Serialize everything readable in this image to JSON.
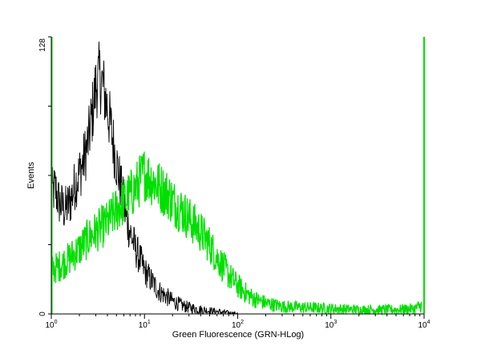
{
  "chart_data": {
    "type": "line",
    "title": "",
    "xlabel": "Green Fluorescence (GRN-HLog)",
    "ylabel": "Events",
    "x_scale": "log",
    "xlim": [
      1,
      10000
    ],
    "ylim": [
      0,
      128
    ],
    "x_ticks": [
      {
        "value": 1,
        "base": "10",
        "exp": "0"
      },
      {
        "value": 10,
        "base": "10",
        "exp": "1"
      },
      {
        "value": 100,
        "base": "10",
        "exp": "2"
      },
      {
        "value": 1000,
        "base": "10",
        "exp": "3"
      },
      {
        "value": 10000,
        "base": "10",
        "exp": "4"
      }
    ],
    "y_tick_labels": [
      "0",
      "128"
    ],
    "grid": false,
    "legend": "none",
    "series": [
      {
        "color": "#000000",
        "x": [
          1.0,
          1.1,
          1.2,
          1.4,
          1.6,
          1.8,
          2.0,
          2.2,
          2.5,
          2.8,
          3.0,
          3.3,
          3.6,
          4.0,
          4.4,
          5.0,
          5.6,
          6.3,
          7.0,
          8.0,
          9.0,
          10,
          12,
          14,
          16,
          20,
          25,
          30,
          40,
          50,
          60,
          80,
          100
        ],
        "y": [
          55,
          58,
          52,
          48,
          52,
          60,
          65,
          70,
          80,
          95,
          105,
          110,
          105,
          95,
          85,
          70,
          58,
          45,
          38,
          30,
          25,
          20,
          15,
          11,
          9,
          6,
          4,
          3,
          2,
          1.5,
          1,
          0.5,
          0.2
        ]
      },
      {
        "color": "#00e000",
        "x": [
          1.0,
          1.2,
          1.5,
          2.0,
          2.5,
          3.0,
          4.0,
          5.0,
          6.0,
          7.0,
          8.0,
          9.0,
          10,
          12,
          15,
          18,
          20,
          25,
          30,
          40,
          50,
          60,
          70,
          80,
          100,
          120,
          150,
          200,
          300,
          500,
          1000,
          2000,
          5000,
          8000,
          9500
        ],
        "y": [
          20,
          22,
          25,
          30,
          35,
          38,
          42,
          48,
          52,
          55,
          58,
          62,
          65,
          62,
          58,
          55,
          52,
          48,
          44,
          38,
          32,
          26,
          22,
          18,
          13,
          10,
          7,
          5,
          3.5,
          3,
          2.5,
          2,
          2,
          2.5,
          4
        ]
      }
    ],
    "end_markers": [
      {
        "color": "#00e000",
        "x": 1,
        "y": 128
      },
      {
        "color": "#00e000",
        "x": 10000,
        "y": 128
      }
    ]
  }
}
